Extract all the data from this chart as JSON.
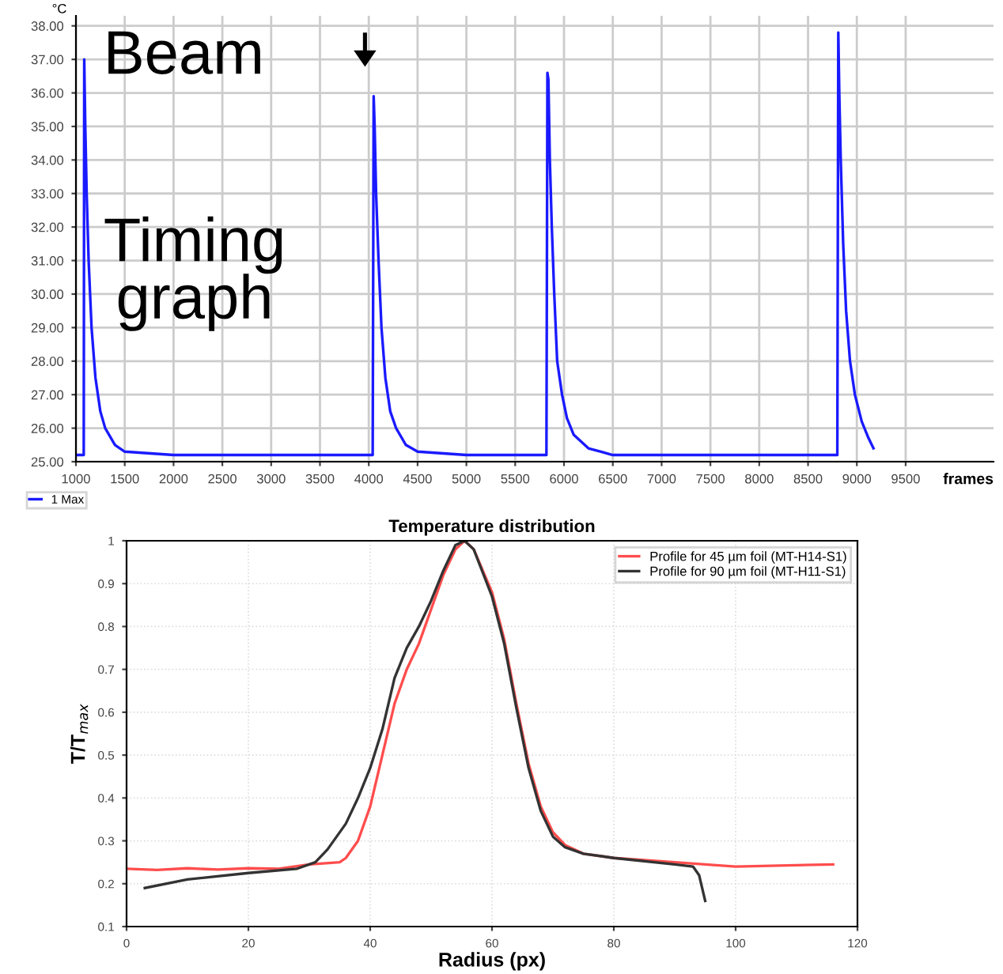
{
  "chart_data": [
    {
      "type": "line",
      "ylabel": "°C",
      "xlabel": "frames",
      "annotations": [
        "Beam",
        "Timing\ngraph"
      ],
      "x": [
        1000,
        1080,
        1085,
        1095,
        1110,
        1130,
        1160,
        1200,
        1250,
        1300,
        1400,
        1500,
        2000,
        3000,
        4040,
        4050,
        4060,
        4075,
        4100,
        4130,
        4170,
        4220,
        4280,
        4380,
        4500,
        5000,
        5820,
        5830,
        5840,
        5855,
        5875,
        5900,
        5930,
        5980,
        6030,
        6100,
        6250,
        6500,
        8000,
        8800,
        8810,
        8820,
        8835,
        8860,
        8890,
        8930,
        8980,
        9050,
        9120,
        9170
      ],
      "series": [
        {
          "name": "1 Max",
          "color": "#1a1aff",
          "values": [
            25.2,
            25.2,
            37.0,
            35.1,
            33.0,
            31.0,
            29.0,
            27.5,
            26.5,
            26.0,
            25.5,
            25.3,
            25.2,
            25.2,
            25.2,
            35.9,
            35.0,
            33.0,
            31.0,
            29.0,
            27.5,
            26.5,
            26.0,
            25.5,
            25.3,
            25.2,
            25.2,
            36.6,
            36.4,
            34.0,
            32.0,
            30.0,
            28.0,
            27.0,
            26.3,
            25.8,
            25.4,
            25.2,
            25.2,
            25.2,
            37.8,
            36.0,
            34.0,
            31.5,
            29.5,
            28.0,
            27.0,
            26.2,
            25.7,
            25.4
          ]
        }
      ],
      "xlim": [
        1000,
        10400
      ],
      "ylim": [
        25,
        38.3
      ],
      "xticks": [
        1000,
        1500,
        2000,
        2500,
        3000,
        3500,
        4000,
        4500,
        5000,
        5500,
        6000,
        6500,
        7000,
        7500,
        8000,
        8500,
        9000,
        9500
      ],
      "yticks": [
        {
          "value": 25,
          "label": "25.00"
        },
        {
          "value": 26,
          "label": "26.00"
        },
        {
          "value": 27,
          "label": "27.00"
        },
        {
          "value": 28,
          "label": "28.00"
        },
        {
          "value": 29,
          "label": "29.00"
        },
        {
          "value": 30,
          "label": "30.00"
        },
        {
          "value": 31,
          "label": "31.00"
        },
        {
          "value": 32,
          "label": "32.00"
        },
        {
          "value": 33,
          "label": "33.00"
        },
        {
          "value": 34,
          "label": "34.00"
        },
        {
          "value": 35,
          "label": "35.00"
        },
        {
          "value": 36,
          "label": "36.00"
        },
        {
          "value": 37,
          "label": "37.00"
        },
        {
          "value": 38,
          "label": "38.00"
        }
      ],
      "grid": true,
      "legend": "bottom left"
    },
    {
      "type": "line",
      "title": "Temperature distribution",
      "xlabel": "Radius (px)",
      "ylabel": "T/T$_{max}$",
      "series": [
        {
          "name": "Profile for 45 µm foil (MT-H14-S1)",
          "color": "#ff4d4d",
          "x": [
            0,
            5,
            10,
            15,
            20,
            25,
            30,
            35,
            36,
            38,
            40,
            42,
            44,
            46,
            48,
            50,
            52,
            54,
            55.5,
            57,
            60,
            62,
            64,
            66,
            68,
            70,
            72,
            75,
            80,
            90,
            100,
            116
          ],
          "values": [
            0.235,
            0.232,
            0.236,
            0.233,
            0.236,
            0.235,
            0.245,
            0.25,
            0.26,
            0.3,
            0.38,
            0.5,
            0.62,
            0.7,
            0.76,
            0.84,
            0.92,
            0.98,
            1.0,
            0.98,
            0.88,
            0.77,
            0.62,
            0.48,
            0.38,
            0.32,
            0.29,
            0.27,
            0.26,
            0.25,
            0.24,
            0.245
          ]
        },
        {
          "name": "Profile for 90 µm foil (MT-H11-S1)",
          "color": "#333333",
          "x": [
            3,
            10,
            20,
            28,
            31,
            33,
            36,
            38,
            40,
            42,
            44,
            46,
            48,
            50,
            52,
            54,
            55.5,
            57,
            60,
            62,
            64,
            66,
            68,
            70,
            72,
            75,
            80,
            90,
            93,
            94,
            95
          ],
          "values": [
            0.19,
            0.21,
            0.225,
            0.235,
            0.25,
            0.28,
            0.34,
            0.4,
            0.47,
            0.56,
            0.68,
            0.75,
            0.8,
            0.86,
            0.93,
            0.99,
            1.0,
            0.98,
            0.87,
            0.76,
            0.61,
            0.47,
            0.37,
            0.31,
            0.285,
            0.27,
            0.26,
            0.245,
            0.24,
            0.22,
            0.16
          ]
        }
      ],
      "xlim": [
        0,
        120
      ],
      "ylim": [
        0.1,
        1
      ],
      "xticks": [
        0,
        20,
        40,
        60,
        80,
        100,
        120
      ],
      "yticks": [
        0.1,
        0.2,
        0.3,
        0.4,
        0.5,
        0.6,
        0.7,
        0.8,
        0.9,
        1
      ],
      "grid": true,
      "legend": "top right"
    }
  ]
}
